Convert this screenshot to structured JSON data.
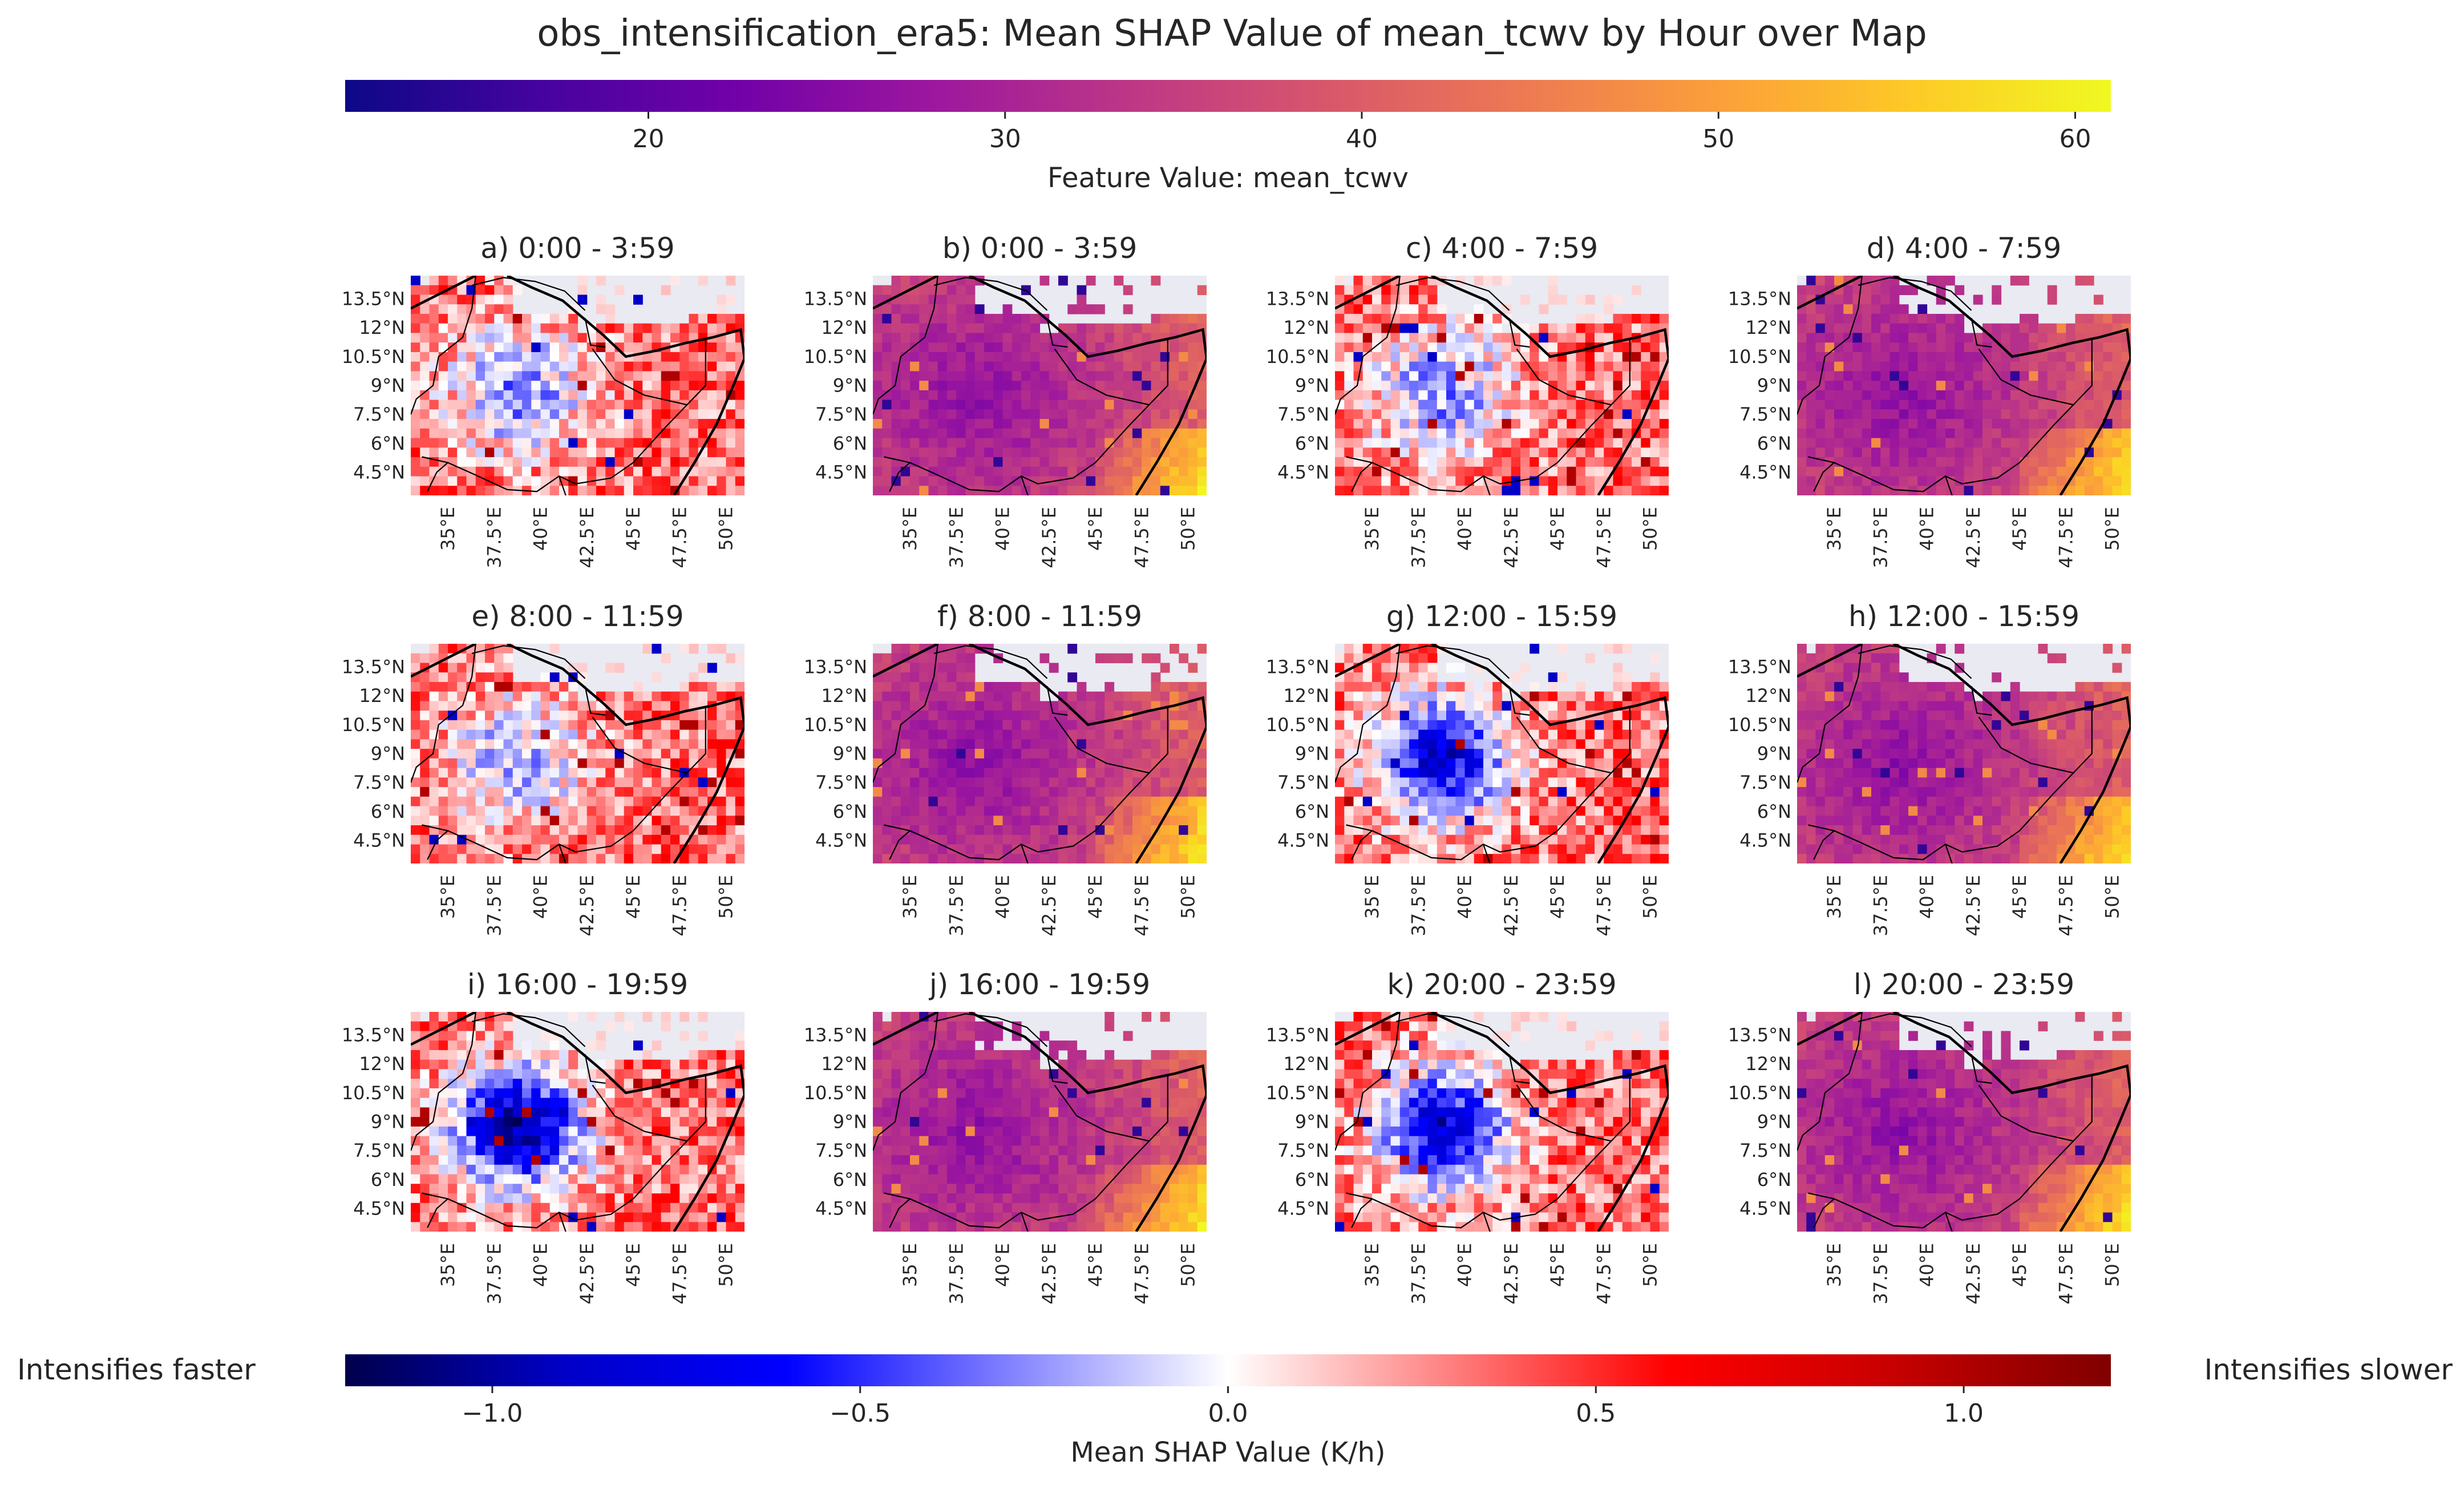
{
  "title": "obs_intensification_era5: Mean SHAP Value of mean_tcwv by Hour over Map",
  "left_label": "Intensifies faster",
  "right_label": "Intensifies slower",
  "colorbar_feature": {
    "label": "Feature Value: mean_tcwv",
    "range": [
      11.5,
      61
    ],
    "ticks": [
      20,
      30,
      40,
      50,
      60
    ],
    "tick_labels": [
      "20",
      "30",
      "40",
      "50",
      "60"
    ],
    "colormap": "plasma",
    "stops": [
      "#0d0887",
      "#46039f",
      "#7201a8",
      "#9c179e",
      "#bd3786",
      "#d8576b",
      "#ed7953",
      "#fb9f3a",
      "#fdca26",
      "#f0f921"
    ]
  },
  "colorbar_shap": {
    "label": "Mean SHAP Value (K/h)",
    "range": [
      -1.2,
      1.2
    ],
    "ticks": [
      -1.0,
      -0.5,
      0.0,
      0.5,
      1.0
    ],
    "tick_labels": [
      "−1.0",
      "−0.5",
      "0.0",
      "0.5",
      "1.0"
    ],
    "colormap": "seismic",
    "stops": [
      "#00004c",
      "#0000c8",
      "#0000ff",
      "#8080ff",
      "#ffffff",
      "#ff8080",
      "#ff0000",
      "#c80000",
      "#800000"
    ]
  },
  "map_axes": {
    "lat_ticks": [
      "13.5°N",
      "12°N",
      "10.5°N",
      "9°N",
      "7.5°N",
      "6°N",
      "4.5°N"
    ],
    "lat_values": [
      13.5,
      12,
      10.5,
      9,
      7.5,
      6,
      4.5
    ],
    "lon_ticks": [
      "35°E",
      "37.5°E",
      "40°E",
      "42.5°E",
      "45°E",
      "47.5°E",
      "50°E"
    ],
    "lon_values": [
      35,
      37.5,
      40,
      42.5,
      45,
      47.5,
      50
    ],
    "lon_range": [
      33,
      51
    ],
    "lat_range": [
      3.3,
      14.7
    ]
  },
  "chart_data": {
    "type": "heatmap",
    "panels": [
      {
        "title": "a) 0:00 - 3:59",
        "kind": "shap",
        "center_shap": -0.3
      },
      {
        "title": "b) 0:00 - 3:59",
        "kind": "feature"
      },
      {
        "title": "c) 4:00 - 7:59",
        "kind": "shap",
        "center_shap": -0.3
      },
      {
        "title": "d) 4:00 - 7:59",
        "kind": "feature"
      },
      {
        "title": "e) 8:00 - 11:59",
        "kind": "shap",
        "center_shap": -0.2
      },
      {
        "title": "f) 8:00 - 11:59",
        "kind": "feature"
      },
      {
        "title": "g) 12:00 - 15:59",
        "kind": "shap",
        "center_shap": -0.8
      },
      {
        "title": "h) 12:00 - 15:59",
        "kind": "feature"
      },
      {
        "title": "i) 16:00 - 19:59",
        "kind": "shap",
        "center_shap": -1.0
      },
      {
        "title": "j) 16:00 - 19:59",
        "kind": "feature"
      },
      {
        "title": "k) 20:00 - 23:59",
        "kind": "shap",
        "center_shap": -0.8
      },
      {
        "title": "l) 20:00 - 23:59",
        "kind": "feature"
      }
    ]
  }
}
